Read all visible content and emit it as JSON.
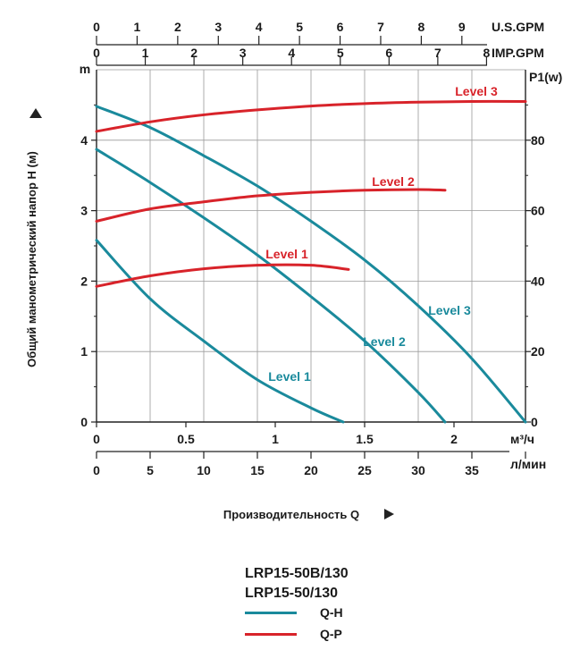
{
  "chart_data": {
    "type": "line",
    "top_axes": {
      "us_gpm": {
        "unit": "U.S.GPM",
        "ticks": [
          "0",
          "1",
          "2",
          "3",
          "4",
          "5",
          "6",
          "7",
          "8",
          "9"
        ]
      },
      "imp_gpm": {
        "unit": "IMP.GPM",
        "ticks": [
          "0",
          "1",
          "2",
          "3",
          "4",
          "5",
          "6",
          "7",
          "8"
        ]
      }
    },
    "bottom_axes": {
      "m3h": {
        "unit": "м³/ч",
        "ticks": [
          "0",
          "0.5",
          "1",
          "1.5",
          "2"
        ]
      },
      "lmin": {
        "unit": "л/мин",
        "ticks": [
          "0",
          "5",
          "10",
          "15",
          "20",
          "25",
          "30",
          "35"
        ]
      }
    },
    "left_axis": {
      "unit": "m",
      "title": "Общий манометрический напор H (м)",
      "ticks": [
        "0",
        "1",
        "2",
        "3",
        "4"
      ],
      "ylim": [
        0,
        5
      ]
    },
    "right_axis": {
      "unit": "P1(w)",
      "ticks": [
        "0",
        "20",
        "40",
        "60",
        "80"
      ],
      "ylim": [
        0,
        100
      ]
    },
    "xlabel": "Производительность Q",
    "xlim": [
      0,
      40
    ],
    "grid": true,
    "series": [
      {
        "group": "Q-H",
        "name": "Level 1",
        "color": "#1a8a9c",
        "x": [
          0,
          5,
          10,
          15,
          20,
          23
        ],
        "y": [
          2.58,
          1.75,
          1.15,
          0.6,
          0.2,
          0
        ]
      },
      {
        "group": "Q-H",
        "name": "Level 2",
        "color": "#1a8a9c",
        "x": [
          0,
          5,
          10,
          15,
          20,
          25,
          30,
          32.5
        ],
        "y": [
          3.87,
          3.4,
          2.9,
          2.37,
          1.78,
          1.15,
          0.42,
          0
        ]
      },
      {
        "group": "Q-H",
        "name": "Level 3",
        "color": "#1a8a9c",
        "x": [
          0,
          5,
          10,
          15,
          20,
          25,
          30,
          35,
          40
        ],
        "y": [
          4.48,
          4.18,
          3.78,
          3.35,
          2.85,
          2.3,
          1.65,
          0.9,
          0
        ]
      },
      {
        "group": "Q-P",
        "name": "Level 1",
        "color": "#d8232a",
        "x": [
          0,
          5,
          10,
          15,
          20,
          23.5
        ],
        "y": [
          38.5,
          41.5,
          43.5,
          44.5,
          44.5,
          43.3
        ]
      },
      {
        "group": "Q-P",
        "name": "Level 2",
        "color": "#d8232a",
        "x": [
          0,
          5,
          10,
          15,
          20,
          25,
          30,
          32.5
        ],
        "y": [
          57,
          60.5,
          62.5,
          64.2,
          65.2,
          65.8,
          66,
          65.8
        ]
      },
      {
        "group": "Q-P",
        "name": "Level 3",
        "color": "#d8232a",
        "x": [
          0,
          5,
          10,
          15,
          20,
          25,
          30,
          35,
          40
        ],
        "y": [
          82.5,
          85.2,
          87.2,
          88.6,
          89.7,
          90.4,
          90.8,
          91,
          91
        ]
      }
    ]
  },
  "legend": {
    "models": [
      "LRP15-50B/130",
      "LRP15-50/130"
    ],
    "items": [
      {
        "label": "Q-H",
        "color": "#1a8a9c"
      },
      {
        "label": "Q-P",
        "color": "#d8232a"
      }
    ]
  }
}
